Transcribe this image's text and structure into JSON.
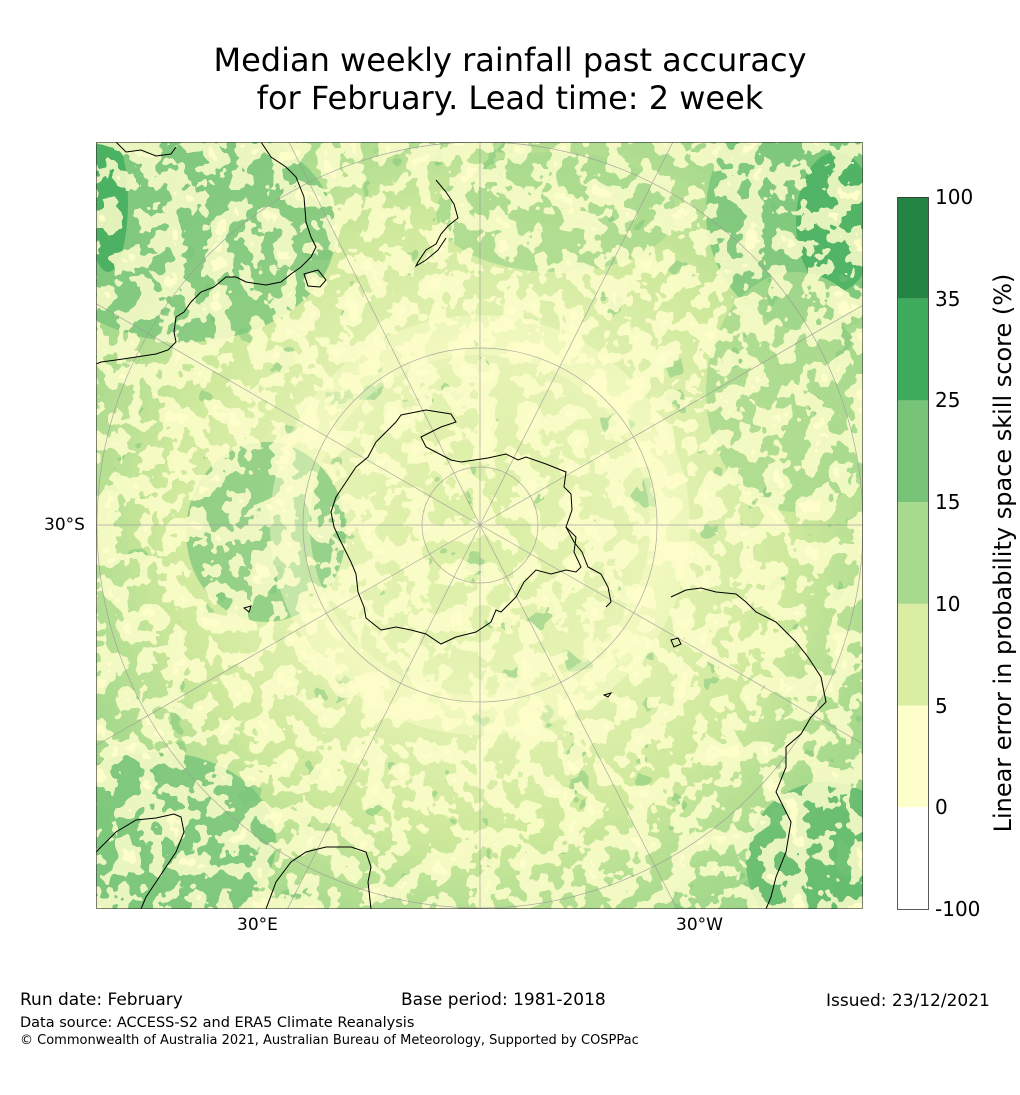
{
  "title": {
    "line1": "Median weekly rainfall past accuracy",
    "line2": "for February. Lead time: 2 week"
  },
  "map": {
    "projection": "south-polar-stereographic",
    "palette": {
      "white": "#ffffff",
      "cream": "#fefecb",
      "pale": "#d9eea3",
      "light": "#a8da8d",
      "medium": "#77c479",
      "strong": "#3fab5c",
      "dark": "#238443",
      "coast": "#000000",
      "grid": "#9a9a9a"
    },
    "labels": {
      "lat_left": "30°S",
      "lon_left": "30°E",
      "lon_right": "30°W"
    }
  },
  "colorbar": {
    "title": "Linear error in probability space skill score (%)",
    "ticks": [
      "100",
      "35",
      "25",
      "15",
      "10",
      "5",
      "0",
      "-100"
    ],
    "colors": [
      "#238443",
      "#3fab5c",
      "#77c479",
      "#a8da8d",
      "#d9eea3",
      "#fefecb",
      "#ffffff"
    ],
    "bounds": [
      -100,
      0,
      5,
      10,
      15,
      25,
      35,
      100
    ]
  },
  "footer": {
    "run_date": "Run date: February",
    "base_period": "Base period: 1981-2018",
    "issued": "Issued: 23/12/2021",
    "data_source": "Data source: ACCESS-S2 and ERA5 Climate Reanalysis",
    "copyright": "© Commonwealth of Australia 2021, Australian Bureau of Meteorology, Supported by COSPPac"
  }
}
